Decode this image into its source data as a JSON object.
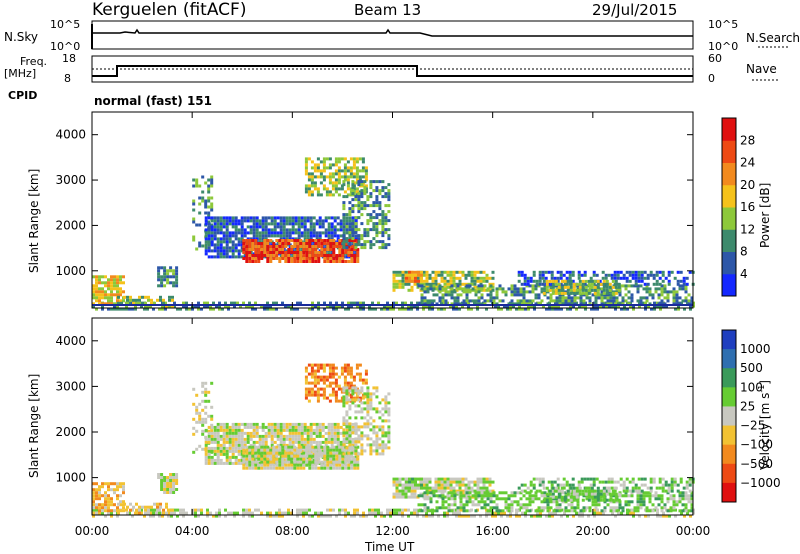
{
  "header": {
    "station": "Kerguelen (fitACF)",
    "beam": "Beam 13",
    "date": "29/Jul/2015"
  },
  "status_panels": {
    "nsky_label": "N.Sky",
    "nsky_ticks": [
      "10^5",
      "10^0"
    ],
    "nsearch_label": "N.Search",
    "nsearch_ticks": [
      "10^5",
      "10^0"
    ],
    "freq_label": "Freq.",
    "freq_unit": "[MHz]",
    "freq_ticks": [
      "18",
      "8"
    ],
    "nave_label": "Nave",
    "nave_ticks": [
      "60",
      "0"
    ],
    "cpid_label": "CPID",
    "cpid_value": "normal (fast) 151"
  },
  "chart_data": [
    {
      "type": "heatmap",
      "name": "power",
      "ylabel": "Slant Range [km]",
      "ylim": [
        180,
        4500
      ],
      "yticks": [
        "1000",
        "2000",
        "3000",
        "4000"
      ],
      "colorbar_label": "Power [dB]",
      "colorbar_ticks": [
        "4",
        "8",
        "12",
        "16",
        "20",
        "24",
        "28"
      ],
      "colorbar_colors": [
        "#1428ff",
        "#2d57a8",
        "#3d8a6c",
        "#8dc83a",
        "#f5c21b",
        "#f28a1e",
        "#ee4a14",
        "#e01010"
      ]
    },
    {
      "type": "heatmap",
      "name": "velocity",
      "ylabel": "Slant Range [km]",
      "ylim": [
        180,
        4500
      ],
      "yticks": [
        "1000",
        "2000",
        "3000",
        "4000"
      ],
      "colorbar_label": "Velocity [m s",
      "colorbar_label_sup": "-1",
      "colorbar_label_end": "]",
      "colorbar_ticks": [
        "1000",
        "500",
        "100",
        "25",
        "−25",
        "−100",
        "−500",
        "−1000"
      ],
      "colorbar_colors": [
        "#1f3fbf",
        "#2f6fb0",
        "#3a9a5a",
        "#66cc33",
        "#c8c8c0",
        "#f2c233",
        "#f28a1e",
        "#ee4a14",
        "#e01010"
      ]
    }
  ],
  "x_axis": {
    "label": "Time UT",
    "ticks": [
      "00:00",
      "04:00",
      "08:00",
      "12:00",
      "16:00",
      "20:00",
      "00:00"
    ]
  }
}
